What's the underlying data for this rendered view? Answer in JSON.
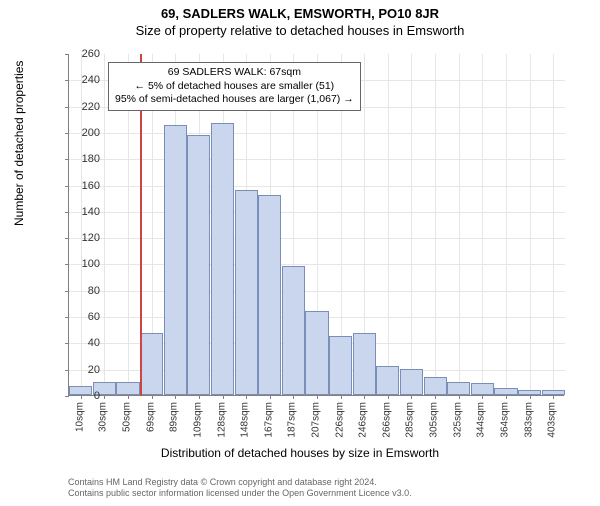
{
  "title_main": "69, SADLERS WALK, EMSWORTH, PO10 8JR",
  "title_sub": "Size of property relative to detached houses in Emsworth",
  "y_axis_label": "Number of detached properties",
  "x_axis_label": "Distribution of detached houses by size in Emsworth",
  "chart": {
    "type": "histogram",
    "y_min": 0,
    "y_max": 260,
    "y_tick_step": 20,
    "x_categories": [
      "10sqm",
      "30sqm",
      "50sqm",
      "69sqm",
      "89sqm",
      "109sqm",
      "128sqm",
      "148sqm",
      "167sqm",
      "187sqm",
      "207sqm",
      "226sqm",
      "246sqm",
      "266sqm",
      "285sqm",
      "305sqm",
      "325sqm",
      "344sqm",
      "364sqm",
      "383sqm",
      "403sqm"
    ],
    "values": [
      7,
      10,
      10,
      47,
      205,
      198,
      207,
      156,
      152,
      98,
      64,
      45,
      47,
      22,
      20,
      14,
      10,
      9,
      5,
      4,
      4
    ],
    "bar_fill": "#c9d6ed",
    "bar_stroke": "#7a8fb8",
    "grid_color": "#e6e6e6",
    "axis_color": "#808080",
    "background": "#ffffff",
    "marker_line": {
      "position_index": 3,
      "color": "#cc4444"
    }
  },
  "annotation": {
    "line1": "69 SADLERS WALK: 67sqm",
    "line2": "← 5% of detached houses are smaller (51)",
    "line3": "95% of semi-detached houses are larger (1,067) →"
  },
  "footer": {
    "line1": "Contains HM Land Registry data © Crown copyright and database right 2024.",
    "line2": "Contains public sector information licensed under the Open Government Licence v3.0."
  }
}
